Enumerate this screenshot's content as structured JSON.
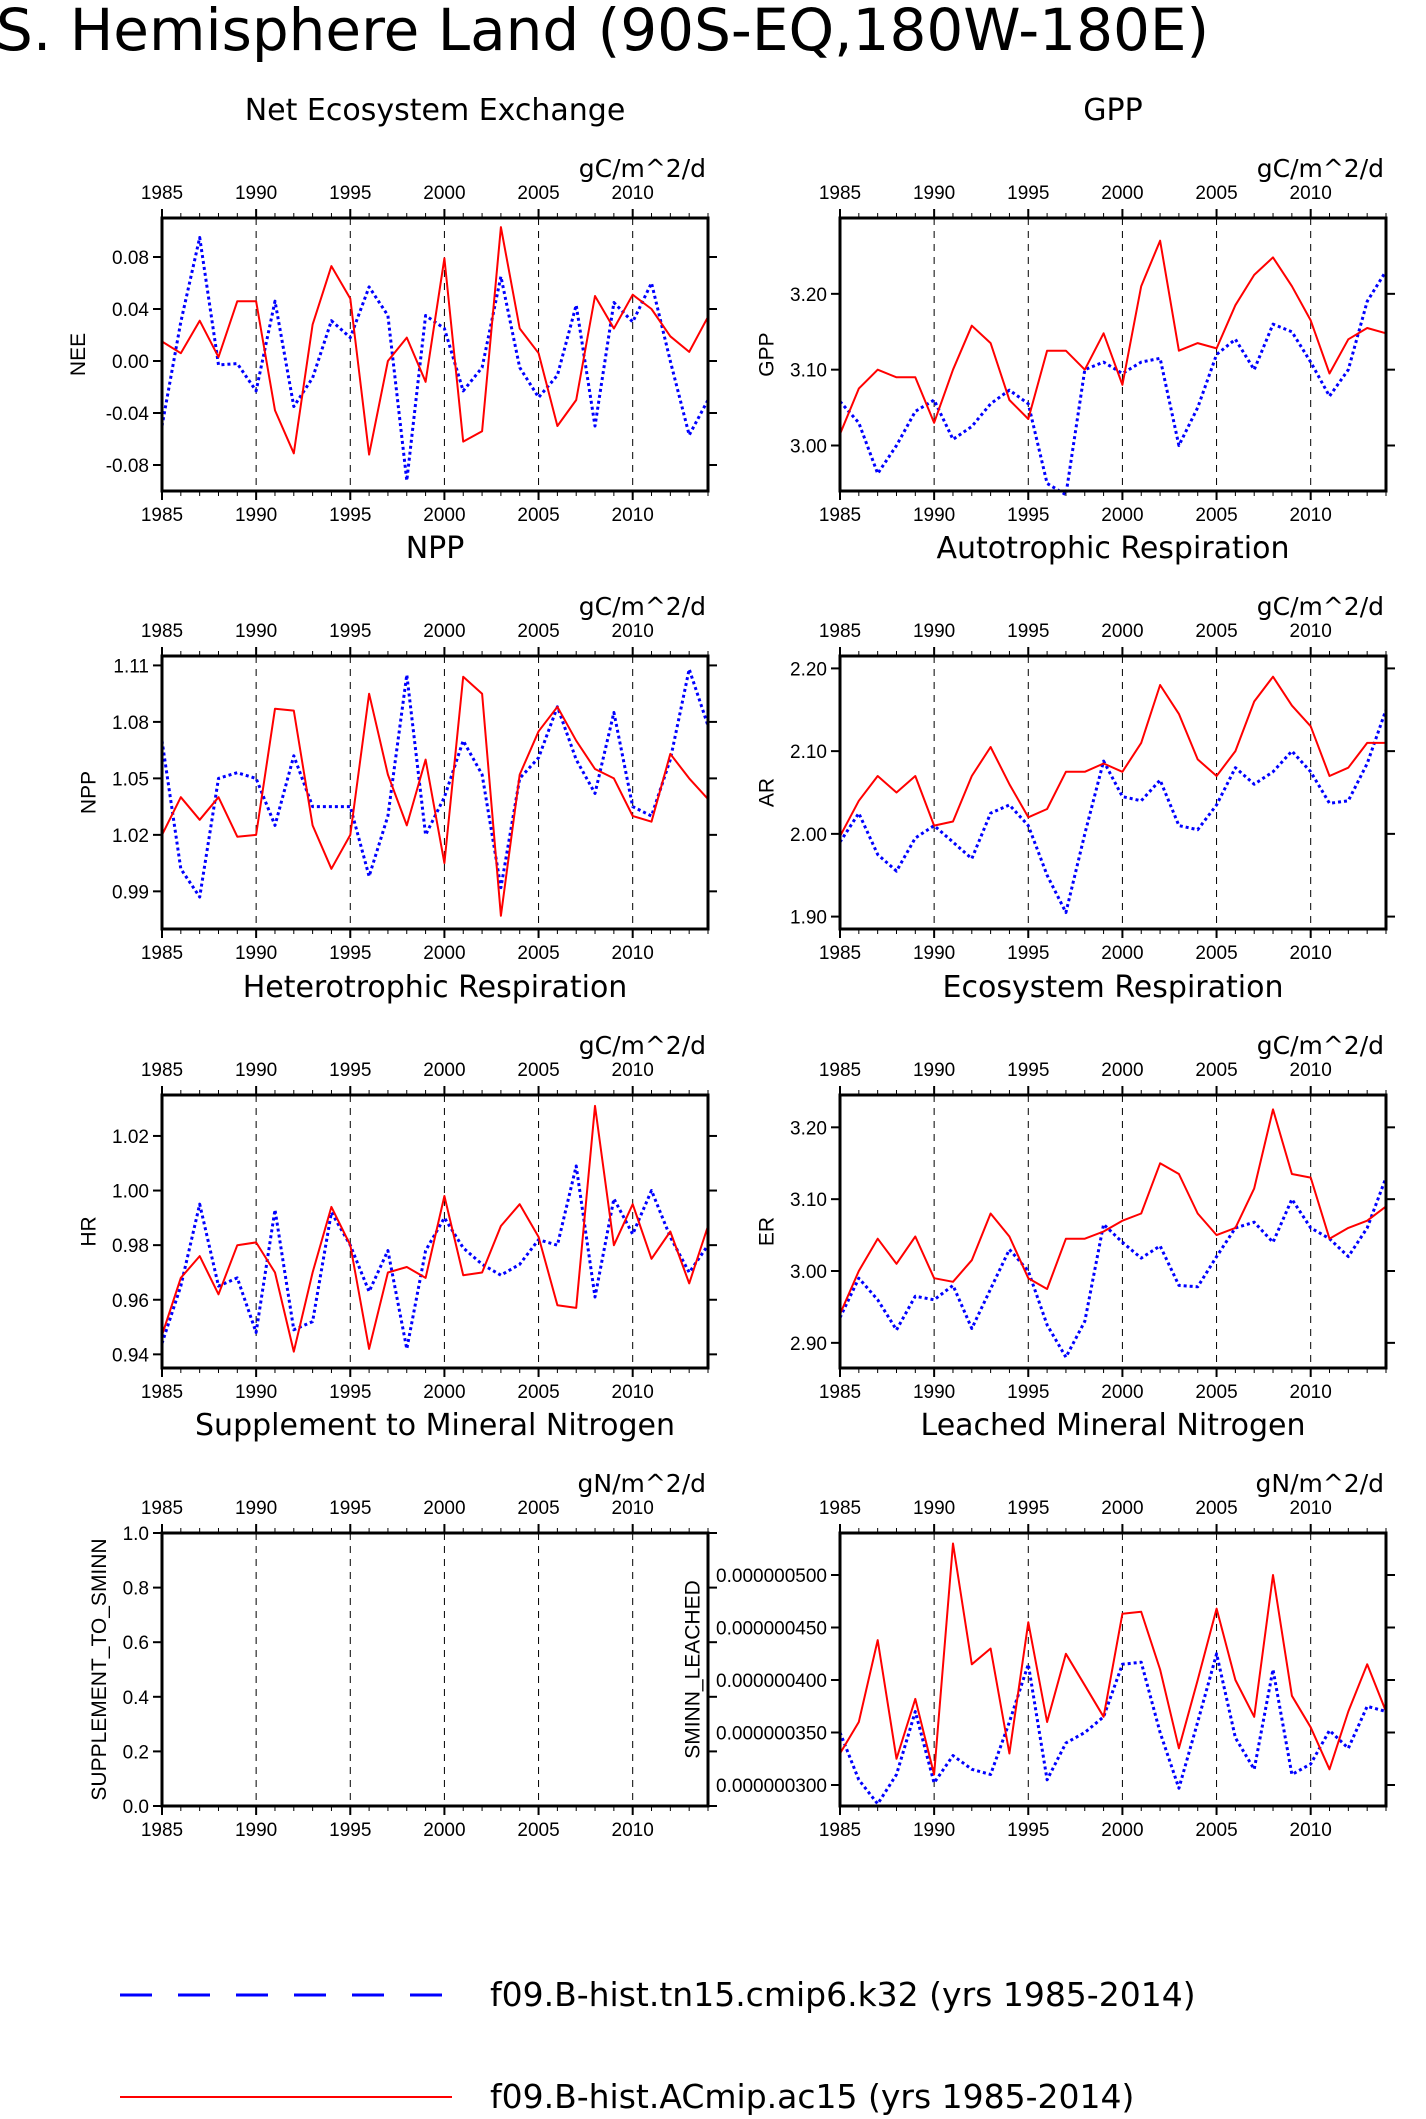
{
  "figure": {
    "title": "S. Hemisphere Land (90S-EQ,180W-180E)"
  },
  "legend": {
    "entries": [
      {
        "label": "f09.B-hist.tn15.cmip6.k32 (yrs 1985-2014)",
        "color": "#0000ff",
        "style": "dash"
      },
      {
        "label": "f09.B-hist.ACmip.ac15 (yrs 1985-2014)",
        "color": "#ff0000",
        "style": "solid"
      }
    ]
  },
  "colors": {
    "case1": "#0000ff",
    "case2": "#ff0000"
  },
  "chart_data": [
    {
      "type": "line",
      "title": "Net Ecosystem Exchange",
      "ylabel": "NEE",
      "units": "gC/m^2/d",
      "xlim": [
        1985,
        2014
      ],
      "ylim": [
        -0.1,
        0.11
      ],
      "xticks": [
        1985,
        1990,
        1995,
        2000,
        2005,
        2010
      ],
      "yticks": [
        "-0.08",
        "-0.04",
        "0.00",
        "0.04",
        "0.08"
      ],
      "grid_x": [
        1990,
        1995,
        2000,
        2005,
        2010
      ],
      "x": [
        1985,
        1986,
        1987,
        1988,
        1989,
        1990,
        1991,
        1992,
        1993,
        1994,
        1995,
        1996,
        1997,
        1998,
        1999,
        2000,
        2001,
        2002,
        2003,
        2004,
        2005,
        2006,
        2007,
        2008,
        2009,
        2010,
        2011,
        2012,
        2013,
        2014
      ],
      "series": [
        {
          "color": "#0000ff",
          "style": "dash",
          "values": [
            -0.05,
            0.03,
            0.095,
            -0.003,
            -0.002,
            -0.023,
            0.046,
            -0.035,
            -0.013,
            0.031,
            0.018,
            0.057,
            0.035,
            -0.092,
            0.035,
            0.025,
            -0.023,
            -0.005,
            0.065,
            -0.005,
            -0.028,
            -0.011,
            0.043,
            -0.05,
            0.045,
            0.03,
            0.06,
            0.0,
            -0.057,
            -0.03
          ]
        },
        {
          "color": "#ff0000",
          "style": "solid",
          "values": [
            0.015,
            0.006,
            0.031,
            0.003,
            0.046,
            0.046,
            -0.038,
            -0.071,
            0.028,
            0.073,
            0.048,
            -0.072,
            0.0,
            0.018,
            -0.016,
            0.079,
            -0.062,
            -0.054,
            0.103,
            0.025,
            0.006,
            -0.05,
            -0.03,
            0.05,
            0.025,
            0.051,
            0.04,
            0.019,
            0.007,
            0.034
          ]
        }
      ]
    },
    {
      "type": "line",
      "title": "GPP",
      "ylabel": "GPP",
      "units": "gC/m^2/d",
      "xlim": [
        1985,
        2014
      ],
      "ylim": [
        2.94,
        3.3
      ],
      "xticks": [
        1985,
        1990,
        1995,
        2000,
        2005,
        2010
      ],
      "yticks": [
        "3.00",
        "3.10",
        "3.20"
      ],
      "grid_x": [
        1990,
        1995,
        2000,
        2005,
        2010
      ],
      "x": [
        1985,
        1986,
        1987,
        1988,
        1989,
        1990,
        1991,
        1992,
        1993,
        1994,
        1995,
        1996,
        1997,
        1998,
        1999,
        2000,
        2001,
        2002,
        2003,
        2004,
        2005,
        2006,
        2007,
        2008,
        2009,
        2010,
        2011,
        2012,
        2013,
        2014
      ],
      "series": [
        {
          "color": "#0000ff",
          "style": "dash",
          "values": [
            3.058,
            3.03,
            2.963,
            3.0,
            3.045,
            3.06,
            3.008,
            3.025,
            3.055,
            3.073,
            3.055,
            2.95,
            2.935,
            3.1,
            3.11,
            3.095,
            3.11,
            3.115,
            3.0,
            3.05,
            3.12,
            3.14,
            3.1,
            3.16,
            3.15,
            3.11,
            3.065,
            3.1,
            3.19,
            3.23
          ]
        },
        {
          "color": "#ff0000",
          "style": "solid",
          "values": [
            3.015,
            3.075,
            3.1,
            3.09,
            3.09,
            3.03,
            3.1,
            3.158,
            3.135,
            3.06,
            3.035,
            3.125,
            3.125,
            3.1,
            3.148,
            3.08,
            3.21,
            3.27,
            3.125,
            3.135,
            3.128,
            3.185,
            3.225,
            3.248,
            3.21,
            3.165,
            3.095,
            3.14,
            3.155,
            3.148
          ]
        }
      ]
    },
    {
      "type": "line",
      "title": "NPP",
      "ylabel": "NPP",
      "units": "gC/m^2/d",
      "xlim": [
        1985,
        2014
      ],
      "ylim": [
        0.97,
        1.115
      ],
      "xticks": [
        1985,
        1990,
        1995,
        2000,
        2005,
        2010
      ],
      "yticks": [
        "0.99",
        "1.02",
        "1.05",
        "1.08",
        "1.11"
      ],
      "grid_x": [
        1990,
        1995,
        2000,
        2005,
        2010
      ],
      "x": [
        1985,
        1986,
        1987,
        1988,
        1989,
        1990,
        1991,
        1992,
        1993,
        1994,
        1995,
        1996,
        1997,
        1998,
        1999,
        2000,
        2001,
        2002,
        2003,
        2004,
        2005,
        2006,
        2007,
        2008,
        2009,
        2010,
        2011,
        2012,
        2013,
        2014
      ],
      "series": [
        {
          "color": "#0000ff",
          "style": "dash",
          "values": [
            1.07,
            1.002,
            0.987,
            1.05,
            1.053,
            1.05,
            1.025,
            1.062,
            1.035,
            1.035,
            1.035,
            0.998,
            1.03,
            1.105,
            1.02,
            1.04,
            1.07,
            1.052,
            0.992,
            1.05,
            1.061,
            1.088,
            1.06,
            1.042,
            1.085,
            1.035,
            1.03,
            1.06,
            1.108,
            1.078
          ]
        },
        {
          "color": "#ff0000",
          "style": "solid",
          "values": [
            1.02,
            1.04,
            1.028,
            1.04,
            1.019,
            1.02,
            1.087,
            1.086,
            1.025,
            1.002,
            1.02,
            1.095,
            1.052,
            1.025,
            1.06,
            1.005,
            1.104,
            1.095,
            0.977,
            1.052,
            1.075,
            1.088,
            1.07,
            1.055,
            1.05,
            1.03,
            1.027,
            1.063,
            1.05,
            1.039
          ]
        }
      ]
    },
    {
      "type": "line",
      "title": "Autotrophic Respiration",
      "ylabel": "AR",
      "units": "gC/m^2/d",
      "xlim": [
        1985,
        2014
      ],
      "ylim": [
        1.885,
        2.215
      ],
      "xticks": [
        1985,
        1990,
        1995,
        2000,
        2005,
        2010
      ],
      "yticks": [
        "1.90",
        "2.00",
        "2.10",
        "2.20"
      ],
      "grid_x": [
        1990,
        1995,
        2000,
        2005,
        2010
      ],
      "x": [
        1985,
        1986,
        1987,
        1988,
        1989,
        1990,
        1991,
        1992,
        1993,
        1994,
        1995,
        1996,
        1997,
        1998,
        1999,
        2000,
        2001,
        2002,
        2003,
        2004,
        2005,
        2006,
        2007,
        2008,
        2009,
        2010,
        2011,
        2012,
        2013,
        2014
      ],
      "series": [
        {
          "color": "#0000ff",
          "style": "dash",
          "values": [
            1.99,
            2.025,
            1.975,
            1.955,
            1.995,
            2.01,
            1.99,
            1.97,
            2.025,
            2.035,
            2.01,
            1.95,
            1.905,
            2.0,
            2.088,
            2.045,
            2.04,
            2.065,
            2.01,
            2.005,
            2.035,
            2.08,
            2.06,
            2.075,
            2.1,
            2.075,
            2.037,
            2.04,
            2.085,
            2.15
          ]
        },
        {
          "color": "#ff0000",
          "style": "solid",
          "values": [
            1.997,
            2.04,
            2.07,
            2.05,
            2.07,
            2.01,
            2.015,
            2.07,
            2.105,
            2.06,
            2.02,
            2.03,
            2.075,
            2.075,
            2.085,
            2.075,
            2.11,
            2.18,
            2.145,
            2.09,
            2.07,
            2.1,
            2.16,
            2.19,
            2.155,
            2.13,
            2.07,
            2.08,
            2.11,
            2.11
          ]
        }
      ]
    },
    {
      "type": "line",
      "title": "Heterotrophic Respiration",
      "ylabel": "HR",
      "units": "gC/m^2/d",
      "xlim": [
        1985,
        2014
      ],
      "ylim": [
        0.935,
        1.035
      ],
      "xticks": [
        1985,
        1990,
        1995,
        2000,
        2005,
        2010
      ],
      "yticks": [
        "0.94",
        "0.96",
        "0.98",
        "1.00",
        "1.02"
      ],
      "grid_x": [
        1990,
        1995,
        2000,
        2005,
        2010
      ],
      "x": [
        1985,
        1986,
        1987,
        1988,
        1989,
        1990,
        1991,
        1992,
        1993,
        1994,
        1995,
        1996,
        1997,
        1998,
        1999,
        2000,
        2001,
        2002,
        2003,
        2004,
        2005,
        2006,
        2007,
        2008,
        2009,
        2010,
        2011,
        2012,
        2013,
        2014
      ],
      "series": [
        {
          "color": "#0000ff",
          "style": "dash",
          "values": [
            0.944,
            0.965,
            0.995,
            0.965,
            0.968,
            0.948,
            0.993,
            0.949,
            0.952,
            0.992,
            0.98,
            0.963,
            0.978,
            0.942,
            0.978,
            0.99,
            0.979,
            0.973,
            0.969,
            0.973,
            0.982,
            0.98,
            1.009,
            0.961,
            0.997,
            0.984,
            1.0,
            0.983,
            0.97,
            0.98
          ]
        },
        {
          "color": "#ff0000",
          "style": "solid",
          "values": [
            0.947,
            0.968,
            0.976,
            0.962,
            0.98,
            0.981,
            0.97,
            0.941,
            0.97,
            0.994,
            0.98,
            0.942,
            0.97,
            0.972,
            0.968,
            0.998,
            0.969,
            0.97,
            0.987,
            0.995,
            0.983,
            0.958,
            0.957,
            1.031,
            0.98,
            0.995,
            0.975,
            0.985,
            0.966,
            0.987
          ]
        }
      ]
    },
    {
      "type": "line",
      "title": "Ecosystem Respiration",
      "ylabel": "ER",
      "units": "gC/m^2/d",
      "xlim": [
        1985,
        2014
      ],
      "ylim": [
        2.865,
        3.245
      ],
      "xticks": [
        1985,
        1990,
        1995,
        2000,
        2005,
        2010
      ],
      "yticks": [
        "2.90",
        "3.00",
        "3.10",
        "3.20"
      ],
      "grid_x": [
        1990,
        1995,
        2000,
        2005,
        2010
      ],
      "x": [
        1985,
        1986,
        1987,
        1988,
        1989,
        1990,
        1991,
        1992,
        1993,
        1994,
        1995,
        1996,
        1997,
        1998,
        1999,
        2000,
        2001,
        2002,
        2003,
        2004,
        2005,
        2006,
        2007,
        2008,
        2009,
        2010,
        2011,
        2012,
        2013,
        2014
      ],
      "series": [
        {
          "color": "#0000ff",
          "style": "dash",
          "values": [
            2.935,
            2.99,
            2.96,
            2.918,
            2.965,
            2.96,
            2.98,
            2.92,
            2.975,
            3.03,
            3.0,
            2.925,
            2.88,
            2.93,
            3.065,
            3.04,
            3.018,
            3.035,
            2.98,
            2.978,
            3.02,
            3.06,
            3.068,
            3.04,
            3.1,
            3.06,
            3.045,
            3.02,
            3.06,
            3.13
          ]
        },
        {
          "color": "#ff0000",
          "style": "solid",
          "values": [
            2.94,
            3.0,
            3.045,
            3.01,
            3.048,
            2.99,
            2.985,
            3.015,
            3.08,
            3.048,
            2.99,
            2.975,
            3.045,
            3.045,
            3.055,
            3.07,
            3.08,
            3.15,
            3.135,
            3.08,
            3.05,
            3.06,
            3.115,
            3.225,
            3.135,
            3.13,
            3.045,
            3.06,
            3.07,
            3.09
          ]
        }
      ]
    },
    {
      "type": "line",
      "title": "Supplement to Mineral Nitrogen",
      "ylabel": "SUPPLEMENT_TO_SMINN",
      "units": "gN/m^2/d",
      "xlim": [
        1985,
        2014
      ],
      "ylim": [
        0.0,
        1.0
      ],
      "xticks": [
        1985,
        1990,
        1995,
        2000,
        2005,
        2010
      ],
      "yticks": [
        "0.0",
        "0.2",
        "0.4",
        "0.6",
        "0.8",
        "1.0"
      ],
      "grid_x": [
        1990,
        1995,
        2000,
        2005,
        2010
      ],
      "x": [],
      "series": []
    },
    {
      "type": "line",
      "title": "Leached Mineral Nitrogen",
      "ylabel": "SMINN_LEACHED",
      "units": "gN/m^2/d",
      "xlim": [
        1985,
        2014
      ],
      "ylim": [
        2.8e-07,
        5.4e-07
      ],
      "xticks": [
        1985,
        1990,
        1995,
        2000,
        2005,
        2010
      ],
      "yticks": [
        "0.000000300",
        "0.000000350",
        "0.000000400",
        "0.000000450",
        "0.000000500"
      ],
      "grid_x": [
        1990,
        1995,
        2000,
        2005,
        2010
      ],
      "x": [
        1985,
        1986,
        1987,
        1988,
        1989,
        1990,
        1991,
        1992,
        1993,
        1994,
        1995,
        1996,
        1997,
        1998,
        1999,
        2000,
        2001,
        2002,
        2003,
        2004,
        2005,
        2006,
        2007,
        2008,
        2009,
        2010,
        2011,
        2012,
        2013,
        2014
      ],
      "series": [
        {
          "color": "#0000ff",
          "style": "dash",
          "values": [
            3.5e-07,
            3.05e-07,
            2.82e-07,
            3.1e-07,
            3.7e-07,
            3.02e-07,
            3.28e-07,
            3.15e-07,
            3.1e-07,
            3.6e-07,
            4.15e-07,
            3.05e-07,
            3.4e-07,
            3.5e-07,
            3.65e-07,
            4.15e-07,
            4.17e-07,
            3.5e-07,
            2.97e-07,
            3.6e-07,
            4.25e-07,
            3.45e-07,
            3.15e-07,
            4.1e-07,
            3.1e-07,
            3.2e-07,
            3.52e-07,
            3.35e-07,
            3.75e-07,
            3.7e-07
          ]
        },
        {
          "color": "#ff0000",
          "style": "solid",
          "values": [
            3.3e-07,
            3.6e-07,
            4.38e-07,
            3.25e-07,
            3.82e-07,
            3.1e-07,
            5.3e-07,
            4.15e-07,
            4.3e-07,
            3.3e-07,
            4.55e-07,
            3.6e-07,
            4.25e-07,
            3.95e-07,
            3.65e-07,
            4.63e-07,
            4.65e-07,
            4.1e-07,
            3.35e-07,
            4e-07,
            4.68e-07,
            4e-07,
            3.65e-07,
            5e-07,
            3.85e-07,
            3.55e-07,
            3.15e-07,
            3.7e-07,
            4.15e-07,
            3.7e-07
          ]
        }
      ]
    }
  ]
}
